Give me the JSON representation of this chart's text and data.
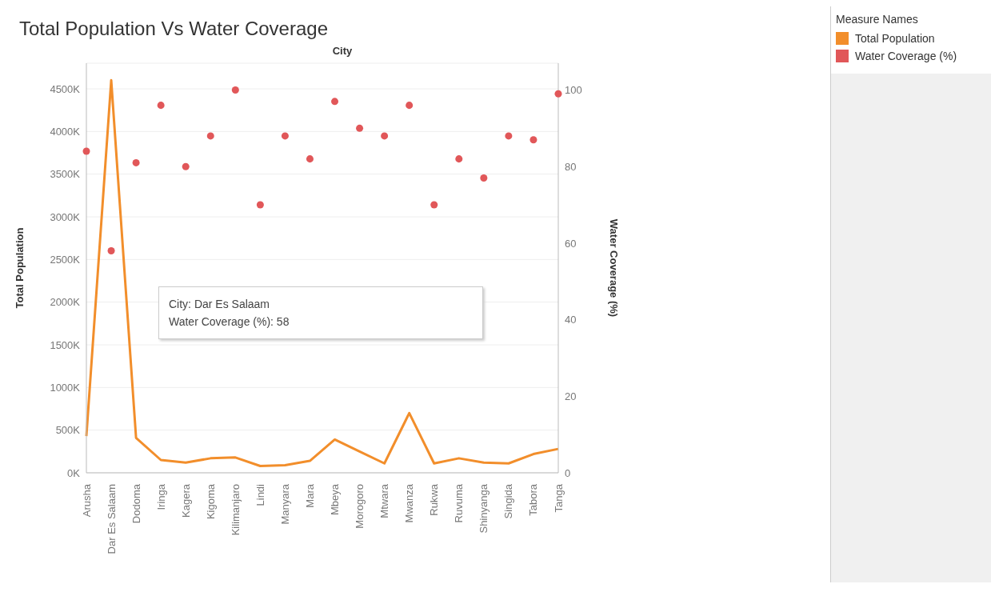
{
  "chart_data": {
    "type": "line",
    "title": "Total Population Vs Water Coverage",
    "xlabel": "City",
    "ylabel": "Total Population",
    "y2label": "Water Coverage (%)",
    "legend_title": "Measure Names",
    "categories": [
      "Arusha",
      "Dar Es Salaam",
      "Dodoma",
      "Iringa",
      "Kagera",
      "Kigoma",
      "Kilimanjaro",
      "Lindi",
      "Manyara",
      "Mara",
      "Mbeya",
      "Morogoro",
      "Mtwara",
      "Mwanza",
      "Rukwa",
      "Ruvuma",
      "Shinyanga",
      "Singida",
      "Tabora",
      "Tanga"
    ],
    "series": [
      {
        "name": "Total Population",
        "color": "#f28e2b",
        "values": [
          430000,
          4600000,
          410000,
          150000,
          120000,
          170000,
          180000,
          80000,
          90000,
          140000,
          390000,
          250000,
          110000,
          700000,
          110000,
          170000,
          120000,
          110000,
          220000,
          280000
        ]
      },
      {
        "name": "Water Coverage (%)",
        "type": "scatter",
        "axis": "y2",
        "color": "#e15759",
        "values": [
          84,
          58,
          81,
          96,
          80,
          88,
          100,
          70,
          88,
          82,
          97,
          90,
          88,
          96,
          70,
          82,
          77,
          88,
          87,
          99
        ]
      }
    ],
    "ylim": [
      0,
      4800000
    ],
    "yticks": [
      {
        "value": 0,
        "label": "0K"
      },
      {
        "value": 500000,
        "label": "500K"
      },
      {
        "value": 1000000,
        "label": "1000K"
      },
      {
        "value": 1500000,
        "label": "1500K"
      },
      {
        "value": 2000000,
        "label": "2000K"
      },
      {
        "value": 2500000,
        "label": "2500K"
      },
      {
        "value": 3000000,
        "label": "3000K"
      },
      {
        "value": 3500000,
        "label": "3500K"
      },
      {
        "value": 4000000,
        "label": "4000K"
      },
      {
        "value": 4500000,
        "label": "4500K"
      }
    ],
    "y2lim": [
      0,
      107
    ],
    "y2ticks": [
      0,
      20,
      40,
      60,
      80,
      100
    ],
    "annotations": [
      "City: Dar Es Salaam\nWater Coverage (%): 58"
    ],
    "grid": "y",
    "legend": "right"
  }
}
